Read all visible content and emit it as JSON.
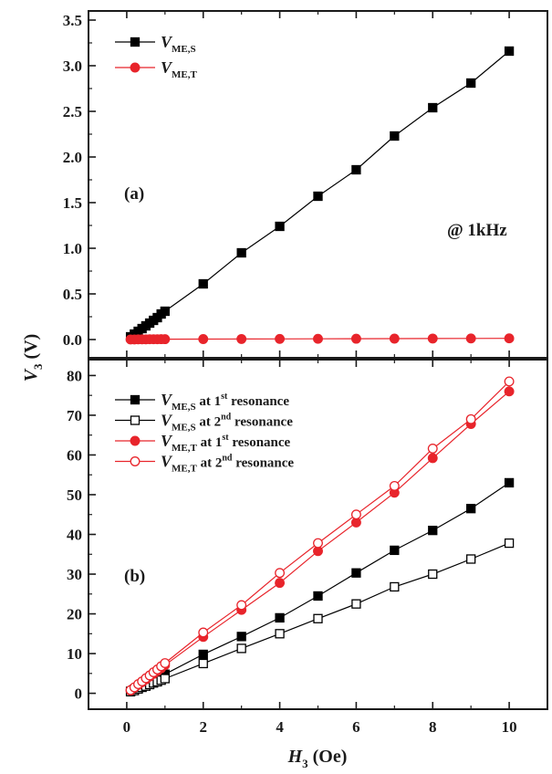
{
  "chart_data": [
    {
      "type": "line",
      "panel_label": "(a)",
      "annotation": "@ 1kHz",
      "xlim": [
        -1,
        11
      ],
      "ylim": [
        -0.2,
        3.6
      ],
      "x_ticks": [
        0,
        2,
        4,
        6,
        8,
        10
      ],
      "y_ticks": [
        0.0,
        0.5,
        1.0,
        1.5,
        2.0,
        2.5,
        3.0,
        3.5
      ],
      "y_tick_labels": [
        "0.0",
        "0.5",
        "1.0",
        "1.5",
        "2.0",
        "2.5",
        "3.0",
        "3.5"
      ],
      "legend_position": "top-left",
      "series": [
        {
          "name": "V",
          "name_sub": "ME,S",
          "name_sup": "",
          "name_suffix": "",
          "marker": "square",
          "filled": true,
          "color": "#000000",
          "x": [
            0.1,
            0.2,
            0.3,
            0.4,
            0.5,
            0.6,
            0.7,
            0.8,
            0.9,
            1,
            2,
            3,
            4,
            5,
            6,
            7,
            8,
            9,
            10
          ],
          "y": [
            0.03,
            0.06,
            0.09,
            0.12,
            0.15,
            0.18,
            0.21,
            0.24,
            0.28,
            0.31,
            0.61,
            0.95,
            1.24,
            1.57,
            1.86,
            2.23,
            2.54,
            2.81,
            3.16
          ]
        },
        {
          "name": "V",
          "name_sub": "ME,T",
          "name_sup": "",
          "name_suffix": "",
          "marker": "circle",
          "filled": true,
          "color": "#e8242b",
          "x": [
            0.1,
            0.2,
            0.3,
            0.4,
            0.5,
            0.6,
            0.7,
            0.8,
            0.9,
            1,
            2,
            3,
            4,
            5,
            6,
            7,
            8,
            9,
            10
          ],
          "y": [
            0.001,
            0.001,
            0.002,
            0.002,
            0.002,
            0.003,
            0.003,
            0.003,
            0.004,
            0.004,
            0.005,
            0.006,
            0.007,
            0.008,
            0.009,
            0.01,
            0.011,
            0.012,
            0.013
          ]
        }
      ]
    },
    {
      "type": "line",
      "panel_label": "(b)",
      "annotation": "",
      "xlim": [
        -1,
        11
      ],
      "ylim": [
        -4,
        84
      ],
      "x_ticks": [
        0,
        2,
        4,
        6,
        8,
        10
      ],
      "y_ticks": [
        0,
        10,
        20,
        30,
        40,
        50,
        60,
        70,
        80
      ],
      "y_tick_labels": [
        "0",
        "10",
        "20",
        "30",
        "40",
        "50",
        "60",
        "70",
        "80"
      ],
      "legend_position": "top-left",
      "series": [
        {
          "name": "V",
          "name_sub": "ME,S",
          "name_mid": " at 1",
          "name_sup": "st",
          "name_suffix": " resonance",
          "marker": "square",
          "filled": true,
          "color": "#000000",
          "x": [
            0.1,
            0.2,
            0.3,
            0.4,
            0.5,
            0.6,
            0.7,
            0.8,
            0.9,
            1,
            2,
            3,
            4,
            5,
            6,
            7,
            8,
            9,
            10
          ],
          "y": [
            0.5,
            1.0,
            1.5,
            2.0,
            2.5,
            3.0,
            3.4,
            3.9,
            4.4,
            4.8,
            9.8,
            14.3,
            19.0,
            24.5,
            30.3,
            36.0,
            41.0,
            46.5,
            53.0
          ]
        },
        {
          "name": "V",
          "name_sub": "ME,S",
          "name_mid": " at 2",
          "name_sup": "nd",
          "name_suffix": " resonance",
          "marker": "square",
          "filled": false,
          "color": "#000000",
          "x": [
            0.1,
            0.2,
            0.3,
            0.4,
            0.5,
            0.6,
            0.7,
            0.8,
            0.9,
            1,
            2,
            3,
            4,
            5,
            6,
            7,
            8,
            9,
            10
          ],
          "y": [
            0.4,
            0.7,
            1.1,
            1.5,
            1.8,
            2.2,
            2.6,
            2.9,
            3.3,
            3.7,
            7.5,
            11.3,
            15.0,
            18.8,
            22.5,
            26.8,
            30.0,
            33.8,
            37.8
          ]
        },
        {
          "name": "V",
          "name_sub": "ME,T",
          "name_mid": " at 1",
          "name_sup": "st",
          "name_suffix": " resonance",
          "marker": "circle",
          "filled": true,
          "color": "#e8242b",
          "x": [
            0.1,
            0.2,
            0.3,
            0.4,
            0.5,
            0.6,
            0.7,
            0.8,
            0.9,
            1,
            2,
            3,
            4,
            5,
            6,
            7,
            8,
            9,
            10
          ],
          "y": [
            0.7,
            1.4,
            2.1,
            2.8,
            3.5,
            4.2,
            4.9,
            5.6,
            6.3,
            7.1,
            14.2,
            21.0,
            27.8,
            35.8,
            43.0,
            50.5,
            59.2,
            67.8,
            76.0
          ]
        },
        {
          "name": "V",
          "name_sub": "ME,T",
          "name_mid": " at 2",
          "name_sup": "nd",
          "name_suffix": " resonance",
          "marker": "circle",
          "filled": false,
          "color": "#e8242b",
          "x": [
            0.1,
            0.2,
            0.3,
            0.4,
            0.5,
            0.6,
            0.7,
            0.8,
            0.9,
            1,
            2,
            3,
            4,
            5,
            6,
            7,
            8,
            9,
            10
          ],
          "y": [
            0.8,
            1.5,
            2.3,
            3.0,
            3.8,
            4.5,
            5.3,
            6.0,
            6.8,
            7.6,
            15.3,
            22.2,
            30.3,
            37.8,
            45.0,
            52.2,
            61.6,
            69.0,
            78.5
          ]
        }
      ]
    }
  ],
  "axes": {
    "ylabel_main": "V",
    "ylabel_sub": "3",
    "ylabel_suffix": " (V)",
    "xlabel_main": "H",
    "xlabel_sub": "3",
    "xlabel_suffix": " (Oe)"
  }
}
